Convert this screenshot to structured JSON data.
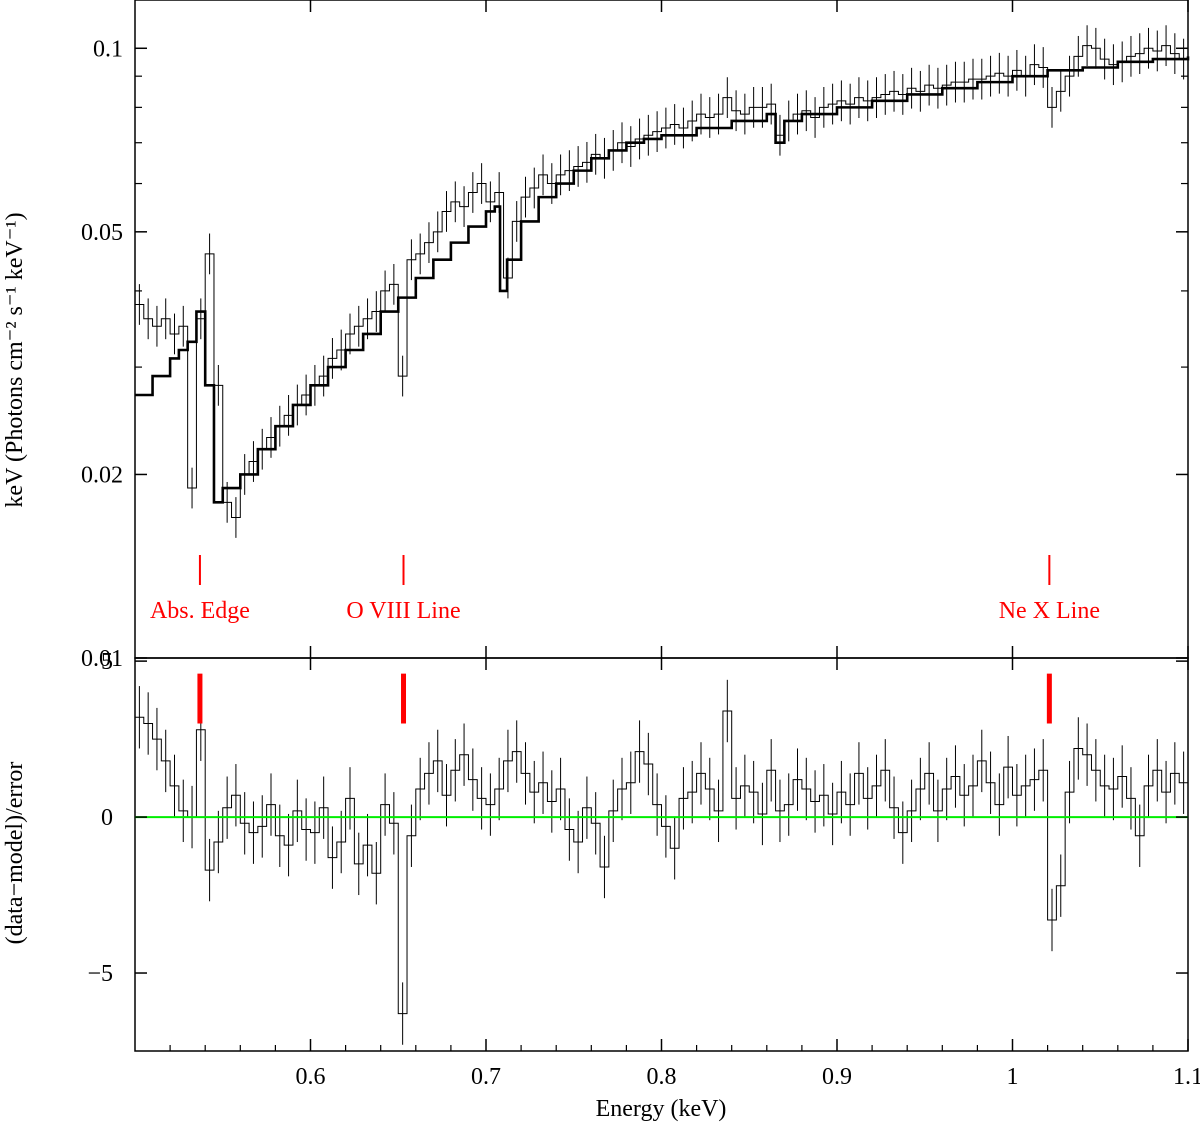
{
  "chart_data": [
    {
      "type": "line",
      "panel": "spectrum",
      "xlabel": "",
      "ylabel": "keV (Photons cm⁻² s⁻¹ keV⁻¹)",
      "xlim": [
        0.5,
        1.1
      ],
      "ylim": [
        0.01,
        0.12
      ],
      "yscale": "log",
      "yticks": [
        {
          "value": 0.02,
          "label": "0.02"
        },
        {
          "value": 0.05,
          "label": "0.05"
        },
        {
          "value": 0.1,
          "label": "0.1"
        },
        {
          "value": 0.01,
          "label": "0.01"
        }
      ],
      "series": [
        {
          "type": "step-with-errorbars",
          "x": [
            0.5,
            0.505,
            0.51,
            0.515,
            0.52,
            0.525,
            0.53,
            0.535,
            0.54,
            0.545,
            0.55,
            0.555,
            0.56,
            0.565,
            0.57,
            0.575,
            0.58,
            0.585,
            0.59,
            0.595,
            0.6,
            0.605,
            0.61,
            0.615,
            0.62,
            0.625,
            0.63,
            0.635,
            0.64,
            0.645,
            0.65,
            0.655,
            0.66,
            0.665,
            0.67,
            0.675,
            0.68,
            0.685,
            0.69,
            0.695,
            0.7,
            0.705,
            0.71,
            0.715,
            0.72,
            0.725,
            0.73,
            0.735,
            0.74,
            0.745,
            0.75,
            0.755,
            0.76,
            0.765,
            0.77,
            0.775,
            0.78,
            0.785,
            0.79,
            0.795,
            0.8,
            0.805,
            0.81,
            0.815,
            0.82,
            0.825,
            0.83,
            0.835,
            0.84,
            0.845,
            0.85,
            0.855,
            0.86,
            0.865,
            0.87,
            0.875,
            0.88,
            0.885,
            0.89,
            0.895,
            0.9,
            0.905,
            0.91,
            0.915,
            0.92,
            0.925,
            0.93,
            0.935,
            0.94,
            0.945,
            0.95,
            0.955,
            0.96,
            0.965,
            0.97,
            0.975,
            0.98,
            0.985,
            0.99,
            0.995,
            1.0,
            1.005,
            1.01,
            1.015,
            1.02,
            1.025,
            1.03,
            1.035,
            1.04,
            1.045,
            1.05,
            1.055,
            1.06,
            1.065,
            1.07,
            1.075,
            1.08,
            1.085,
            1.09,
            1.095
          ],
          "y": [
            0.038,
            0.036,
            0.035,
            0.036,
            0.034,
            0.035,
            0.019,
            0.036,
            0.046,
            0.028,
            0.018,
            0.017,
            0.02,
            0.021,
            0.022,
            0.023,
            0.024,
            0.025,
            0.026,
            0.027,
            0.028,
            0.029,
            0.031,
            0.032,
            0.034,
            0.035,
            0.036,
            0.037,
            0.04,
            0.041,
            0.029,
            0.045,
            0.046,
            0.048,
            0.05,
            0.054,
            0.056,
            0.055,
            0.058,
            0.06,
            0.056,
            0.058,
            0.042,
            0.052,
            0.057,
            0.059,
            0.062,
            0.06,
            0.062,
            0.063,
            0.064,
            0.065,
            0.067,
            0.066,
            0.068,
            0.07,
            0.069,
            0.071,
            0.072,
            0.073,
            0.074,
            0.075,
            0.074,
            0.076,
            0.078,
            0.077,
            0.078,
            0.083,
            0.079,
            0.078,
            0.08,
            0.08,
            0.081,
            0.072,
            0.076,
            0.078,
            0.079,
            0.077,
            0.08,
            0.081,
            0.082,
            0.081,
            0.083,
            0.082,
            0.083,
            0.084,
            0.085,
            0.084,
            0.086,
            0.085,
            0.087,
            0.086,
            0.087,
            0.088,
            0.088,
            0.089,
            0.089,
            0.09,
            0.091,
            0.09,
            0.092,
            0.09,
            0.094,
            0.093,
            0.08,
            0.085,
            0.09,
            0.097,
            0.101,
            0.1,
            0.096,
            0.094,
            0.095,
            0.097,
            0.098,
            0.1,
            0.099,
            0.101,
            0.098,
            0.096
          ],
          "err": 0.08
        },
        {
          "type": "model-step",
          "x": [
            0.5,
            0.51,
            0.52,
            0.525,
            0.53,
            0.535,
            0.54,
            0.545,
            0.55,
            0.56,
            0.57,
            0.58,
            0.59,
            0.6,
            0.61,
            0.62,
            0.63,
            0.64,
            0.65,
            0.66,
            0.67,
            0.68,
            0.69,
            0.7,
            0.705,
            0.708,
            0.712,
            0.72,
            0.73,
            0.74,
            0.75,
            0.76,
            0.77,
            0.78,
            0.79,
            0.8,
            0.82,
            0.84,
            0.86,
            0.865,
            0.87,
            0.88,
            0.9,
            0.92,
            0.94,
            0.96,
            0.98,
            1.0,
            1.02,
            1.04,
            1.06,
            1.08,
            1.1
          ],
          "y": [
            0.027,
            0.029,
            0.031,
            0.032,
            0.033,
            0.037,
            0.028,
            0.018,
            0.019,
            0.02,
            0.022,
            0.024,
            0.026,
            0.028,
            0.03,
            0.032,
            0.034,
            0.037,
            0.039,
            0.042,
            0.045,
            0.048,
            0.051,
            0.054,
            0.055,
            0.04,
            0.045,
            0.052,
            0.057,
            0.06,
            0.063,
            0.066,
            0.068,
            0.07,
            0.071,
            0.072,
            0.074,
            0.076,
            0.078,
            0.07,
            0.076,
            0.078,
            0.08,
            0.082,
            0.084,
            0.086,
            0.088,
            0.09,
            0.092,
            0.093,
            0.095,
            0.096,
            0.097
          ]
        }
      ],
      "annotations": [
        {
          "label": "Abs. Edge",
          "x": 0.537,
          "color": "#ff0000"
        },
        {
          "label": "O VIII Line",
          "x": 0.653,
          "color": "#ff0000"
        },
        {
          "label": "Ne X Line",
          "x": 1.021,
          "color": "#ff0000"
        }
      ]
    },
    {
      "type": "line",
      "panel": "residuals",
      "xlabel": "Energy (keV)",
      "ylabel": "(data−model)/error",
      "xlim": [
        0.5,
        1.1
      ],
      "ylim": [
        -7.5,
        5.1
      ],
      "xticks": [
        {
          "value": 0.6,
          "label": "0.6"
        },
        {
          "value": 0.7,
          "label": "0.7"
        },
        {
          "value": 0.8,
          "label": "0.8"
        },
        {
          "value": 0.9,
          "label": "0.9"
        },
        {
          "value": 1.0,
          "label": "1"
        },
        {
          "value": 1.1,
          "label": "1.1"
        }
      ],
      "yticks": [
        {
          "value": -5,
          "label": "−5"
        },
        {
          "value": 0,
          "label": "0"
        },
        {
          "value": 5,
          "label": "5"
        }
      ],
      "zero_line_color": "#00ee00",
      "series": [
        {
          "type": "step-with-errorbars",
          "x": [
            0.5,
            0.505,
            0.51,
            0.515,
            0.52,
            0.525,
            0.53,
            0.535,
            0.54,
            0.545,
            0.55,
            0.555,
            0.56,
            0.565,
            0.57,
            0.575,
            0.58,
            0.585,
            0.59,
            0.595,
            0.6,
            0.605,
            0.61,
            0.615,
            0.62,
            0.625,
            0.63,
            0.635,
            0.64,
            0.645,
            0.65,
            0.655,
            0.66,
            0.665,
            0.67,
            0.675,
            0.68,
            0.685,
            0.69,
            0.695,
            0.7,
            0.705,
            0.71,
            0.715,
            0.72,
            0.725,
            0.73,
            0.735,
            0.74,
            0.745,
            0.75,
            0.755,
            0.76,
            0.765,
            0.77,
            0.775,
            0.78,
            0.785,
            0.79,
            0.795,
            0.8,
            0.805,
            0.81,
            0.815,
            0.82,
            0.825,
            0.83,
            0.835,
            0.84,
            0.845,
            0.85,
            0.855,
            0.86,
            0.865,
            0.87,
            0.875,
            0.88,
            0.885,
            0.89,
            0.895,
            0.9,
            0.905,
            0.91,
            0.915,
            0.92,
            0.925,
            0.93,
            0.935,
            0.94,
            0.945,
            0.95,
            0.955,
            0.96,
            0.965,
            0.97,
            0.975,
            0.98,
            0.985,
            0.99,
            0.995,
            1.0,
            1.005,
            1.01,
            1.015,
            1.02,
            1.025,
            1.03,
            1.035,
            1.04,
            1.045,
            1.05,
            1.055,
            1.06,
            1.065,
            1.07,
            1.075,
            1.08,
            1.085,
            1.09,
            1.095
          ],
          "y": [
            3.2,
            3.0,
            2.5,
            1.8,
            1.0,
            0.2,
            0.0,
            2.8,
            -1.7,
            -0.8,
            0.3,
            0.7,
            -0.2,
            -0.5,
            -0.3,
            0.4,
            -0.6,
            -0.9,
            0.2,
            -0.4,
            -0.5,
            0.3,
            -1.3,
            -0.8,
            0.6,
            -1.5,
            -0.9,
            -1.8,
            0.4,
            -0.2,
            -6.3,
            -0.6,
            0.9,
            1.4,
            1.8,
            0.7,
            1.5,
            2.0,
            1.2,
            0.6,
            0.4,
            0.9,
            1.8,
            2.1,
            1.4,
            0.8,
            1.1,
            0.5,
            0.9,
            -0.4,
            -0.8,
            0.3,
            -0.2,
            -1.6,
            0.2,
            0.9,
            1.1,
            2.1,
            1.7,
            0.4,
            -0.3,
            -1.0,
            0.6,
            0.8,
            1.4,
            0.9,
            0.2,
            3.4,
            0.6,
            1.0,
            0.8,
            0.1,
            1.5,
            0.2,
            0.4,
            1.2,
            0.9,
            0.5,
            0.7,
            0.1,
            0.8,
            0.4,
            1.4,
            0.6,
            1.0,
            1.5,
            0.3,
            -0.5,
            0.2,
            0.9,
            1.4,
            0.2,
            0.9,
            1.3,
            0.7,
            1.0,
            1.8,
            1.1,
            0.4,
            1.6,
            0.7,
            1.0,
            1.2,
            1.5,
            -3.3,
            -2.2,
            0.8,
            2.2,
            2.0,
            1.5,
            1.0,
            0.9,
            1.3,
            0.6,
            -0.6,
            1.0,
            1.5,
            0.8,
            1.4,
            1.1
          ],
          "err": 1.0
        }
      ],
      "markers": [
        {
          "x": 0.537,
          "color": "#ff0000"
        },
        {
          "x": 0.653,
          "color": "#ff0000"
        },
        {
          "x": 1.021,
          "color": "#ff0000"
        }
      ]
    }
  ]
}
